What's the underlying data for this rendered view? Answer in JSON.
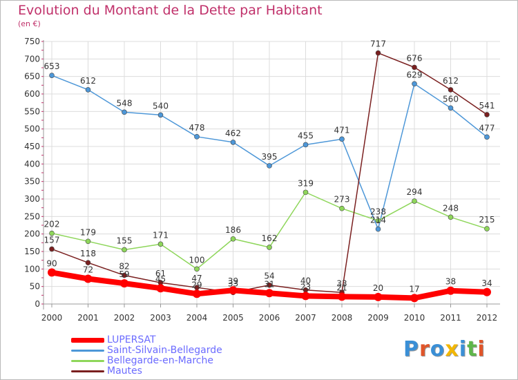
{
  "title": "Evolution du Montant de la Dette par Habitant",
  "subtitle": "(en €)",
  "logo_text": "Proxiti",
  "logo_colors": [
    "#3a8fd6",
    "#e0552a",
    "#3a8fd6",
    "#f2b705",
    "#3a8fd6",
    "#5fb64a",
    "#e0552a"
  ],
  "chart_data": {
    "type": "line",
    "x": [
      "2000",
      "2001",
      "2002",
      "2003",
      "2004",
      "2005",
      "2006",
      "2007",
      "2008",
      "2009",
      "2010",
      "2011",
      "2012"
    ],
    "ylim": [
      0,
      750
    ],
    "yticks": [
      0,
      50,
      100,
      150,
      200,
      250,
      300,
      350,
      400,
      450,
      500,
      550,
      600,
      650,
      700,
      750
    ],
    "grid": true,
    "legend_position": "bottom-left",
    "series": [
      {
        "name": "LUPERSAT",
        "color": "#ff0000",
        "values": [
          90,
          72,
          59,
          45,
          29,
          39,
          31,
          23,
          21,
          20,
          17,
          38,
          34
        ],
        "labels": [
          "90",
          "72",
          "59",
          "45",
          "29",
          "39",
          "31",
          "23",
          "21",
          "20",
          "17",
          "38",
          "34"
        ]
      },
      {
        "name": "Saint-Silvain-Bellegarde",
        "color": "#4d97d8",
        "values": [
          653,
          612,
          548,
          540,
          478,
          462,
          395,
          455,
          471,
          214,
          629,
          560,
          477
        ],
        "labels": [
          "653",
          "612",
          "548",
          "540",
          "478",
          "462",
          "395",
          "455",
          "471",
          "214",
          "629",
          "560",
          "477"
        ]
      },
      {
        "name": "Bellegarde-en-Marche",
        "color": "#8ed65a",
        "values": [
          202,
          179,
          155,
          171,
          100,
          186,
          162,
          319,
          273,
          238,
          294,
          248,
          215
        ],
        "labels": [
          "202",
          "179",
          "155",
          "171",
          "100",
          "186",
          "162",
          "319",
          "273",
          "238",
          "294",
          "248",
          "215"
        ]
      },
      {
        "name": "Mautes",
        "color": "#7a1f1f",
        "values": [
          157,
          118,
          82,
          61,
          47,
          33,
          54,
          40,
          33,
          717,
          676,
          612,
          541
        ],
        "labels": [
          "157",
          "118",
          "82",
          "61",
          "47",
          "33",
          "54",
          "40",
          "33",
          "717",
          "676",
          "612",
          "541"
        ]
      }
    ]
  }
}
